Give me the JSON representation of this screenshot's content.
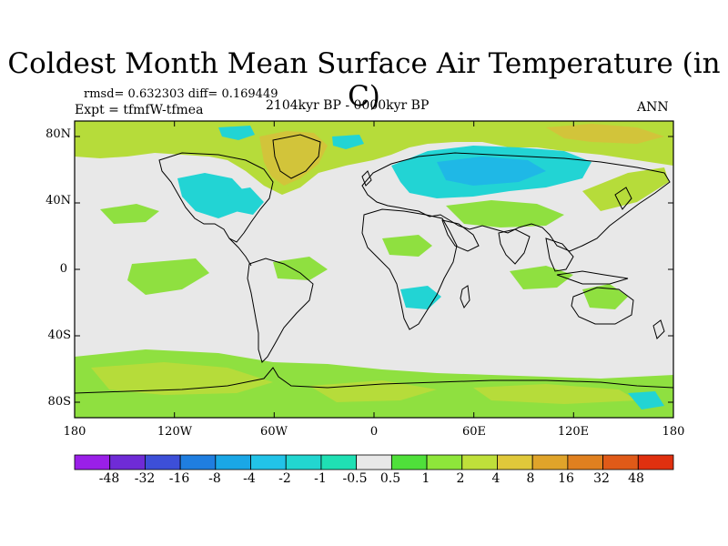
{
  "title": "Coldest Month Mean Surface Air Temperature (in C)",
  "stats": "rmsd= 0.632303 diff= 0.169449",
  "experiment": "Expt = tfmfW-tfmea",
  "period": "2104kyr BP - 0000kyr BP",
  "season": "ANN",
  "y_ticks": [
    "80N",
    "40N",
    "0",
    "40S",
    "80S"
  ],
  "x_ticks": [
    "180",
    "120W",
    "60W",
    "0",
    "60E",
    "120E",
    "180"
  ],
  "colorbar": {
    "labels": [
      "-48",
      "-32",
      "-16",
      "-8",
      "-4",
      "-2",
      "-1",
      "-0.5",
      "0.5",
      "1",
      "2",
      "4",
      "8",
      "16",
      "32",
      "48"
    ],
    "colors": [
      "#9a1fe8",
      "#6f2bd6",
      "#3d4fd8",
      "#1f7ee0",
      "#1aa7e6",
      "#22c3e8",
      "#22d6d0",
      "#1fe0b4",
      "#e8e8e8",
      "#4fe03a",
      "#8ee63a",
      "#bfe03a",
      "#e0c83a",
      "#e0a42a",
      "#e0801f",
      "#e05a18",
      "#e0300f"
    ]
  },
  "colors": {
    "background": "#e8e8e8",
    "pos_small": "#8fe040",
    "pos_mid": "#b6dc3a",
    "pos_high": "#d2c43a",
    "neg_small": "#22d4d4",
    "neg_mid": "#1fb8e6"
  }
}
